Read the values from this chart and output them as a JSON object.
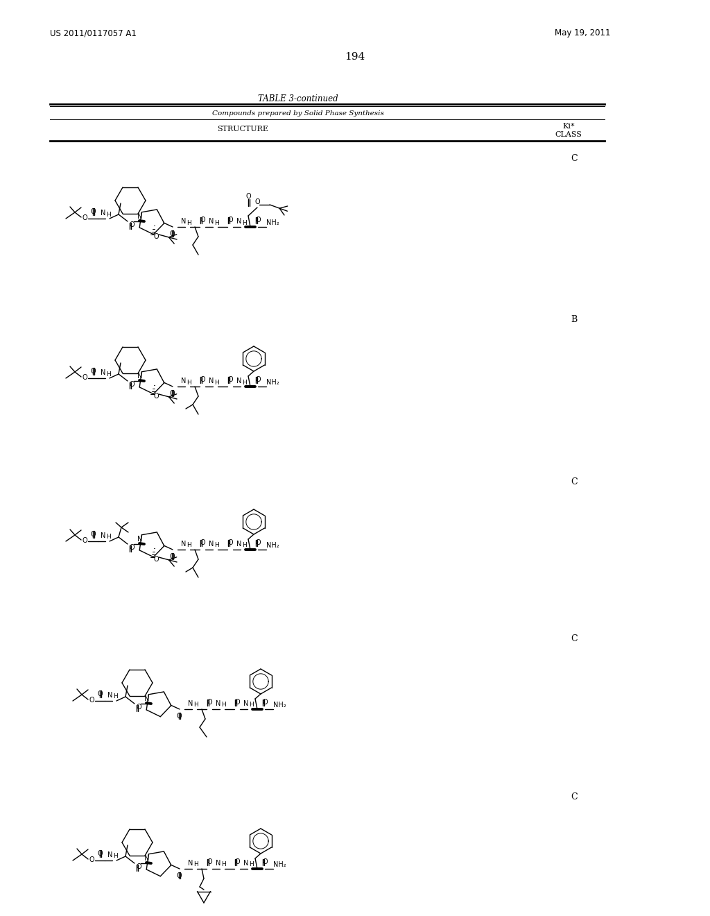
{
  "patent_number": "US 2011/0117057 A1",
  "patent_date": "May 19, 2011",
  "page_number": "194",
  "table_title": "TABLE 3-continued",
  "table_subtitle": "Compounds prepared by Solid Phase Synthesis",
  "col1_header": "STRUCTURE",
  "col2_header_line1": "Ki*",
  "col2_header_line2": "CLASS",
  "classes": [
    "C",
    "B",
    "C",
    "C",
    "C"
  ],
  "class_y": [
    228,
    460,
    695,
    920,
    1148
  ],
  "bg_color": "#ffffff"
}
